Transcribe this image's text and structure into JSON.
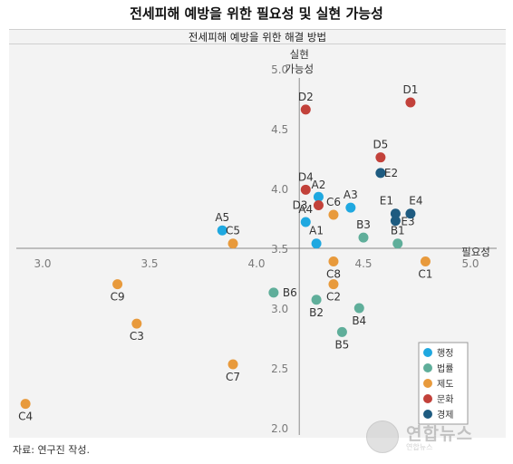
{
  "title": "전세피해 예방을 위한 필요성 및 실현 가능성",
  "source_note": "자료: 연구진 작성.",
  "watermark": {
    "text": "연합뉴스",
    "subtext": "연합뉴스"
  },
  "chart_data": {
    "type": "scatter",
    "title": "전세피해 예방을 위한 해결 방법",
    "xlabel": "필요성",
    "ylabel": "실현\n가능성",
    "xlim": [
      2.9,
      5.1
    ],
    "ylim": [
      2.0,
      5.0
    ],
    "x_origin": 4.2,
    "y_origin": 3.5,
    "x_ticks": [
      3.0,
      3.5,
      4.0,
      4.5,
      5.0
    ],
    "y_ticks": [
      2.0,
      2.5,
      3.0,
      3.5,
      4.0,
      4.5,
      5.0
    ],
    "legend_position": "bottom-right",
    "series": [
      {
        "name": "행정",
        "color": "#1fa8e0",
        "points": [
          {
            "label": "A1",
            "x": 4.28,
            "y": 3.54
          },
          {
            "label": "A2",
            "x": 4.29,
            "y": 3.93
          },
          {
            "label": "A3",
            "x": 4.44,
            "y": 3.84
          },
          {
            "label": "A4",
            "x": 4.23,
            "y": 3.72
          },
          {
            "label": "A5",
            "x": 3.84,
            "y": 3.65
          }
        ]
      },
      {
        "name": "법률",
        "color": "#5fae9a",
        "points": [
          {
            "label": "B1",
            "x": 4.66,
            "y": 3.54
          },
          {
            "label": "B2",
            "x": 4.28,
            "y": 3.07
          },
          {
            "label": "B3",
            "x": 4.5,
            "y": 3.59
          },
          {
            "label": "B4",
            "x": 4.48,
            "y": 3.0
          },
          {
            "label": "B5",
            "x": 4.4,
            "y": 2.8
          },
          {
            "label": "B6",
            "x": 4.08,
            "y": 3.13
          }
        ]
      },
      {
        "name": "제도",
        "color": "#e89a3c",
        "points": [
          {
            "label": "C1",
            "x": 4.79,
            "y": 3.39
          },
          {
            "label": "C2",
            "x": 4.36,
            "y": 3.2
          },
          {
            "label": "C3",
            "x": 3.44,
            "y": 2.87
          },
          {
            "label": "C4",
            "x": 2.92,
            "y": 2.2
          },
          {
            "label": "C5",
            "x": 3.89,
            "y": 3.54
          },
          {
            "label": "C6",
            "x": 4.36,
            "y": 3.78
          },
          {
            "label": "C7",
            "x": 3.89,
            "y": 2.53
          },
          {
            "label": "C8",
            "x": 4.36,
            "y": 3.39
          },
          {
            "label": "C9",
            "x": 3.35,
            "y": 3.2
          }
        ]
      },
      {
        "name": "문화",
        "color": "#c2413a",
        "points": [
          {
            "label": "D1",
            "x": 4.72,
            "y": 4.72
          },
          {
            "label": "D2",
            "x": 4.23,
            "y": 4.66
          },
          {
            "label": "D3",
            "x": 4.29,
            "y": 3.86
          },
          {
            "label": "D4",
            "x": 4.23,
            "y": 3.99
          },
          {
            "label": "D5",
            "x": 4.58,
            "y": 4.26
          }
        ]
      },
      {
        "name": "경제",
        "color": "#1e5b80",
        "points": [
          {
            "label": "E1",
            "x": 4.65,
            "y": 3.79
          },
          {
            "label": "E2",
            "x": 4.58,
            "y": 4.13
          },
          {
            "label": "E3",
            "x": 4.65,
            "y": 3.73
          },
          {
            "label": "E4",
            "x": 4.72,
            "y": 3.79
          }
        ]
      }
    ]
  }
}
